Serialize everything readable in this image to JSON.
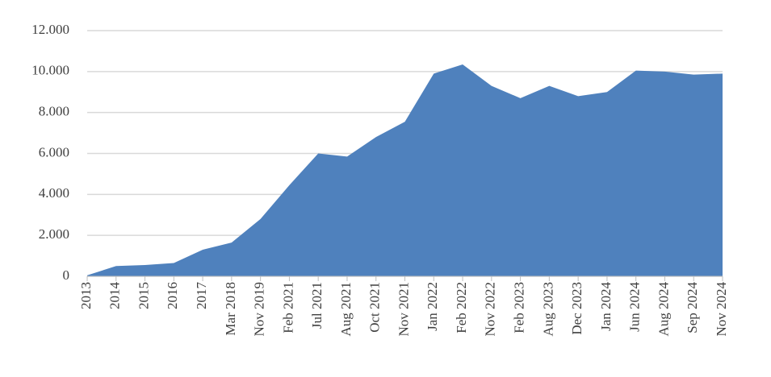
{
  "chart_data": {
    "type": "area",
    "categories": [
      "2013",
      "2014",
      "2015",
      "2016",
      "2017",
      "Mar 2018",
      "Nov 2019",
      "Feb 2021",
      "Jul 2021",
      "Aug 2021",
      "Oct 2021",
      "Nov 2021",
      "Jan 2022",
      "Feb 2022",
      "Nov 2022",
      "Feb 2023",
      "Aug 2023",
      "Dec 2023",
      "Jan 2024",
      "Jun 2024",
      "Aug 2024",
      "Sep 2024",
      "Nov 2024"
    ],
    "values": [
      50,
      500,
      550,
      650,
      1300,
      1650,
      2800,
      4450,
      6000,
      5850,
      6800,
      7550,
      9900,
      10350,
      9300,
      8700,
      9300,
      8800,
      9000,
      10050,
      10000,
      9850,
      9900
    ],
    "color": "#4f81bd",
    "ylim": [
      0,
      12000
    ],
    "yticks": [
      0,
      {
        "value": 2000,
        "label": "2.000"
      },
      {
        "value": 4000,
        "label": "4.000"
      },
      {
        "value": 6000,
        "label": "6.000"
      },
      {
        "value": 8000,
        "label": "8.000"
      },
      {
        "value": 10000,
        "label": "10.000"
      },
      {
        "value": 12000,
        "label": "12.000"
      }
    ],
    "grid": true
  }
}
